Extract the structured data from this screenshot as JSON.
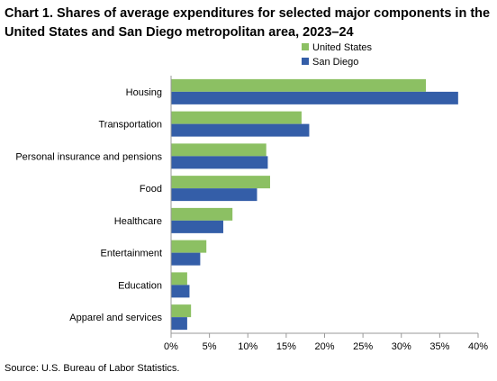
{
  "chart_data": {
    "type": "bar",
    "orientation": "horizontal",
    "title": "Chart 1. Shares of average expenditures for selected major components in the United States and San Diego metropolitan area, 2023–24",
    "categories": [
      "Housing",
      "Transportation",
      "Personal insurance and pensions",
      "Food",
      "Healthcare",
      "Entertainment",
      "Education",
      "Apparel and services"
    ],
    "series": [
      {
        "name": "United States",
        "color": "#8cc063",
        "values": [
          33.2,
          17.0,
          12.4,
          12.9,
          8.0,
          4.6,
          2.1,
          2.6
        ]
      },
      {
        "name": "San Diego",
        "color": "#345ea8",
        "values": [
          37.4,
          18.0,
          12.6,
          11.2,
          6.8,
          3.8,
          2.4,
          2.1
        ]
      }
    ],
    "xlim": [
      0,
      40
    ],
    "xticks": [
      "0%",
      "5%",
      "10%",
      "15%",
      "20%",
      "25%",
      "30%",
      "35%",
      "40%"
    ],
    "legend_position": "top-right",
    "grid": false,
    "source": "Source: U.S. Bureau of Labor Statistics."
  }
}
